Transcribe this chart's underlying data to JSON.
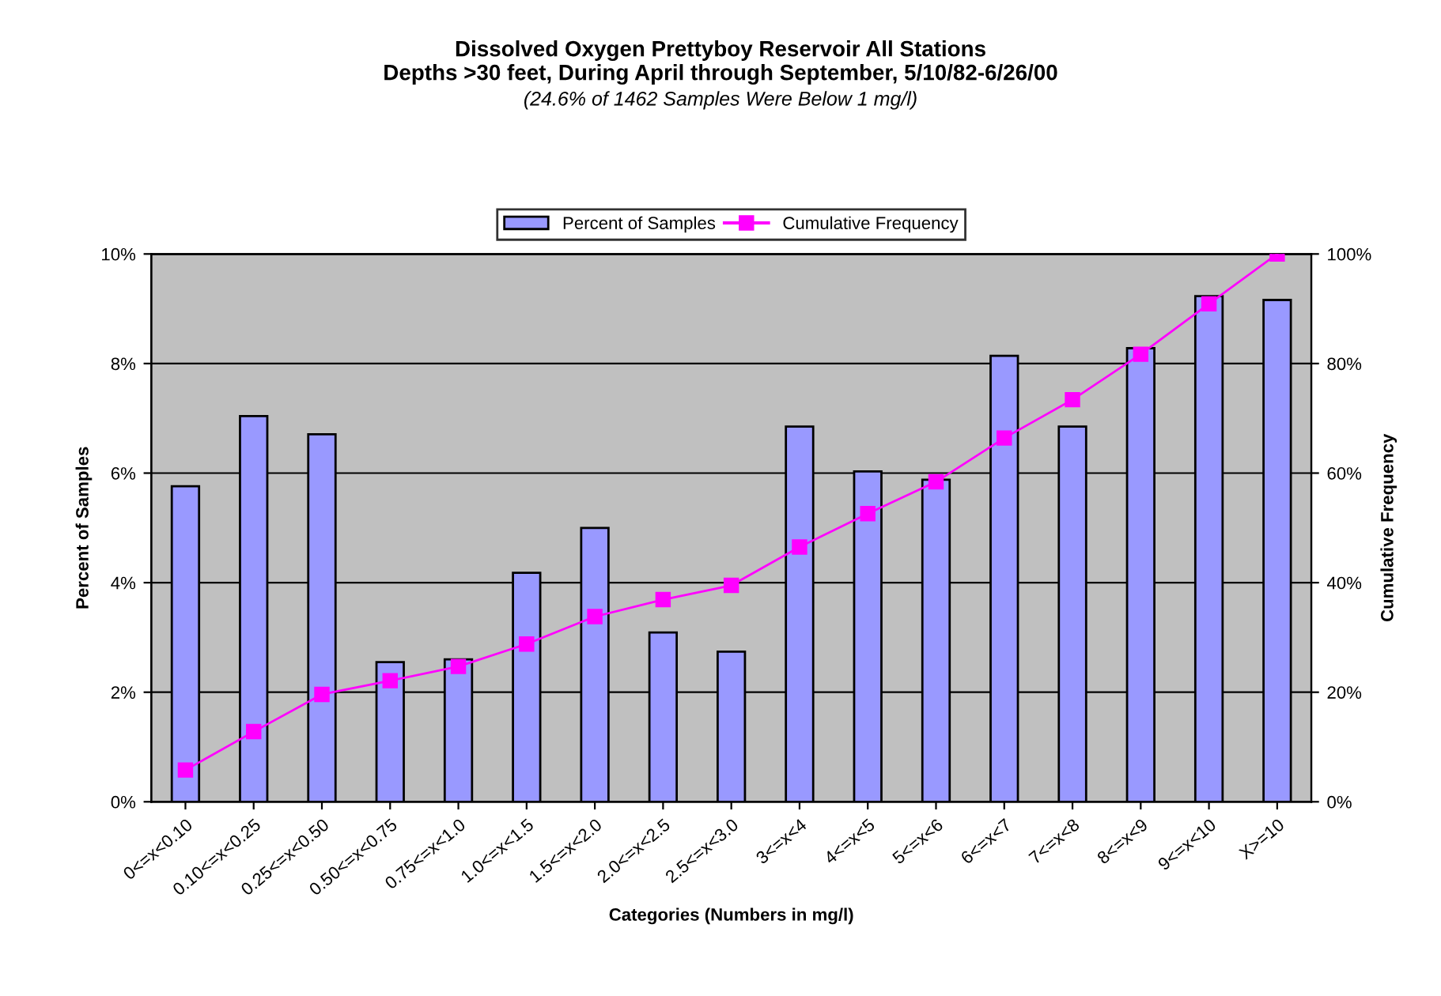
{
  "chart_data": {
    "type": "bar",
    "title": "Dissolved Oxygen Prettyboy Reservoir All Stations\nDepths >30 feet, During April through September, 5/10/82-6/26/00",
    "subtitle": "(24.6% of 1462 Samples Were Below 1 mg/l)",
    "xlabel": "Categories (Numbers in mg/l)",
    "ylabel": "Percent of Samples",
    "y2label": "Cumulative Frequency",
    "categories": [
      "0<=x<0.10",
      "0.10<=x<0.25",
      "0.25<=x<0.50",
      "0.50<=x<0.75",
      "0.75<=x<1.0",
      "1.0<=x<1.5",
      "1.5<=x<2.0",
      "2.0<=x<2.5",
      "2.5<=x<3.0",
      "3<=x<4",
      "4<=x<5",
      "5<=x<6",
      "6<=x<7",
      "7<=x<8",
      "8<=x<9",
      "9<=x<10",
      "X>=10"
    ],
    "series": [
      {
        "name": "Percent of Samples",
        "color": "#9999ff",
        "values": [
          5.76,
          7.04,
          6.71,
          2.55,
          2.6,
          4.18,
          5.0,
          3.09,
          2.74,
          6.85,
          6.03,
          5.88,
          8.14,
          6.85,
          8.28,
          9.23,
          9.16
        ]
      },
      {
        "name": "Cumulative Frequency",
        "type": "line",
        "axis": "y2",
        "color": "#ff00ff",
        "marker": "square",
        "values": [
          5.8,
          12.8,
          19.6,
          22.1,
          24.7,
          28.8,
          33.8,
          36.9,
          39.5,
          46.5,
          52.6,
          58.4,
          66.4,
          73.4,
          81.7,
          90.9,
          100
        ]
      }
    ],
    "ylim": [
      0,
      10
    ],
    "yticks": [
      {
        "value": 0,
        "label": "0%"
      },
      {
        "value": 2,
        "label": "2%"
      },
      {
        "value": 4,
        "label": "4%"
      },
      {
        "value": 6,
        "label": "6%"
      },
      {
        "value": 8,
        "label": "8%"
      },
      {
        "value": 10,
        "label": "10%"
      }
    ],
    "y2lim": [
      0,
      100
    ],
    "y2ticks": [
      {
        "value": 0,
        "label": "0%"
      },
      {
        "value": 20,
        "label": "20%"
      },
      {
        "value": 40,
        "label": "40%"
      },
      {
        "value": 60,
        "label": "60%"
      },
      {
        "value": 80,
        "label": "80%"
      },
      {
        "value": 100,
        "label": "100%"
      }
    ],
    "grid": "y",
    "legend": "top"
  }
}
